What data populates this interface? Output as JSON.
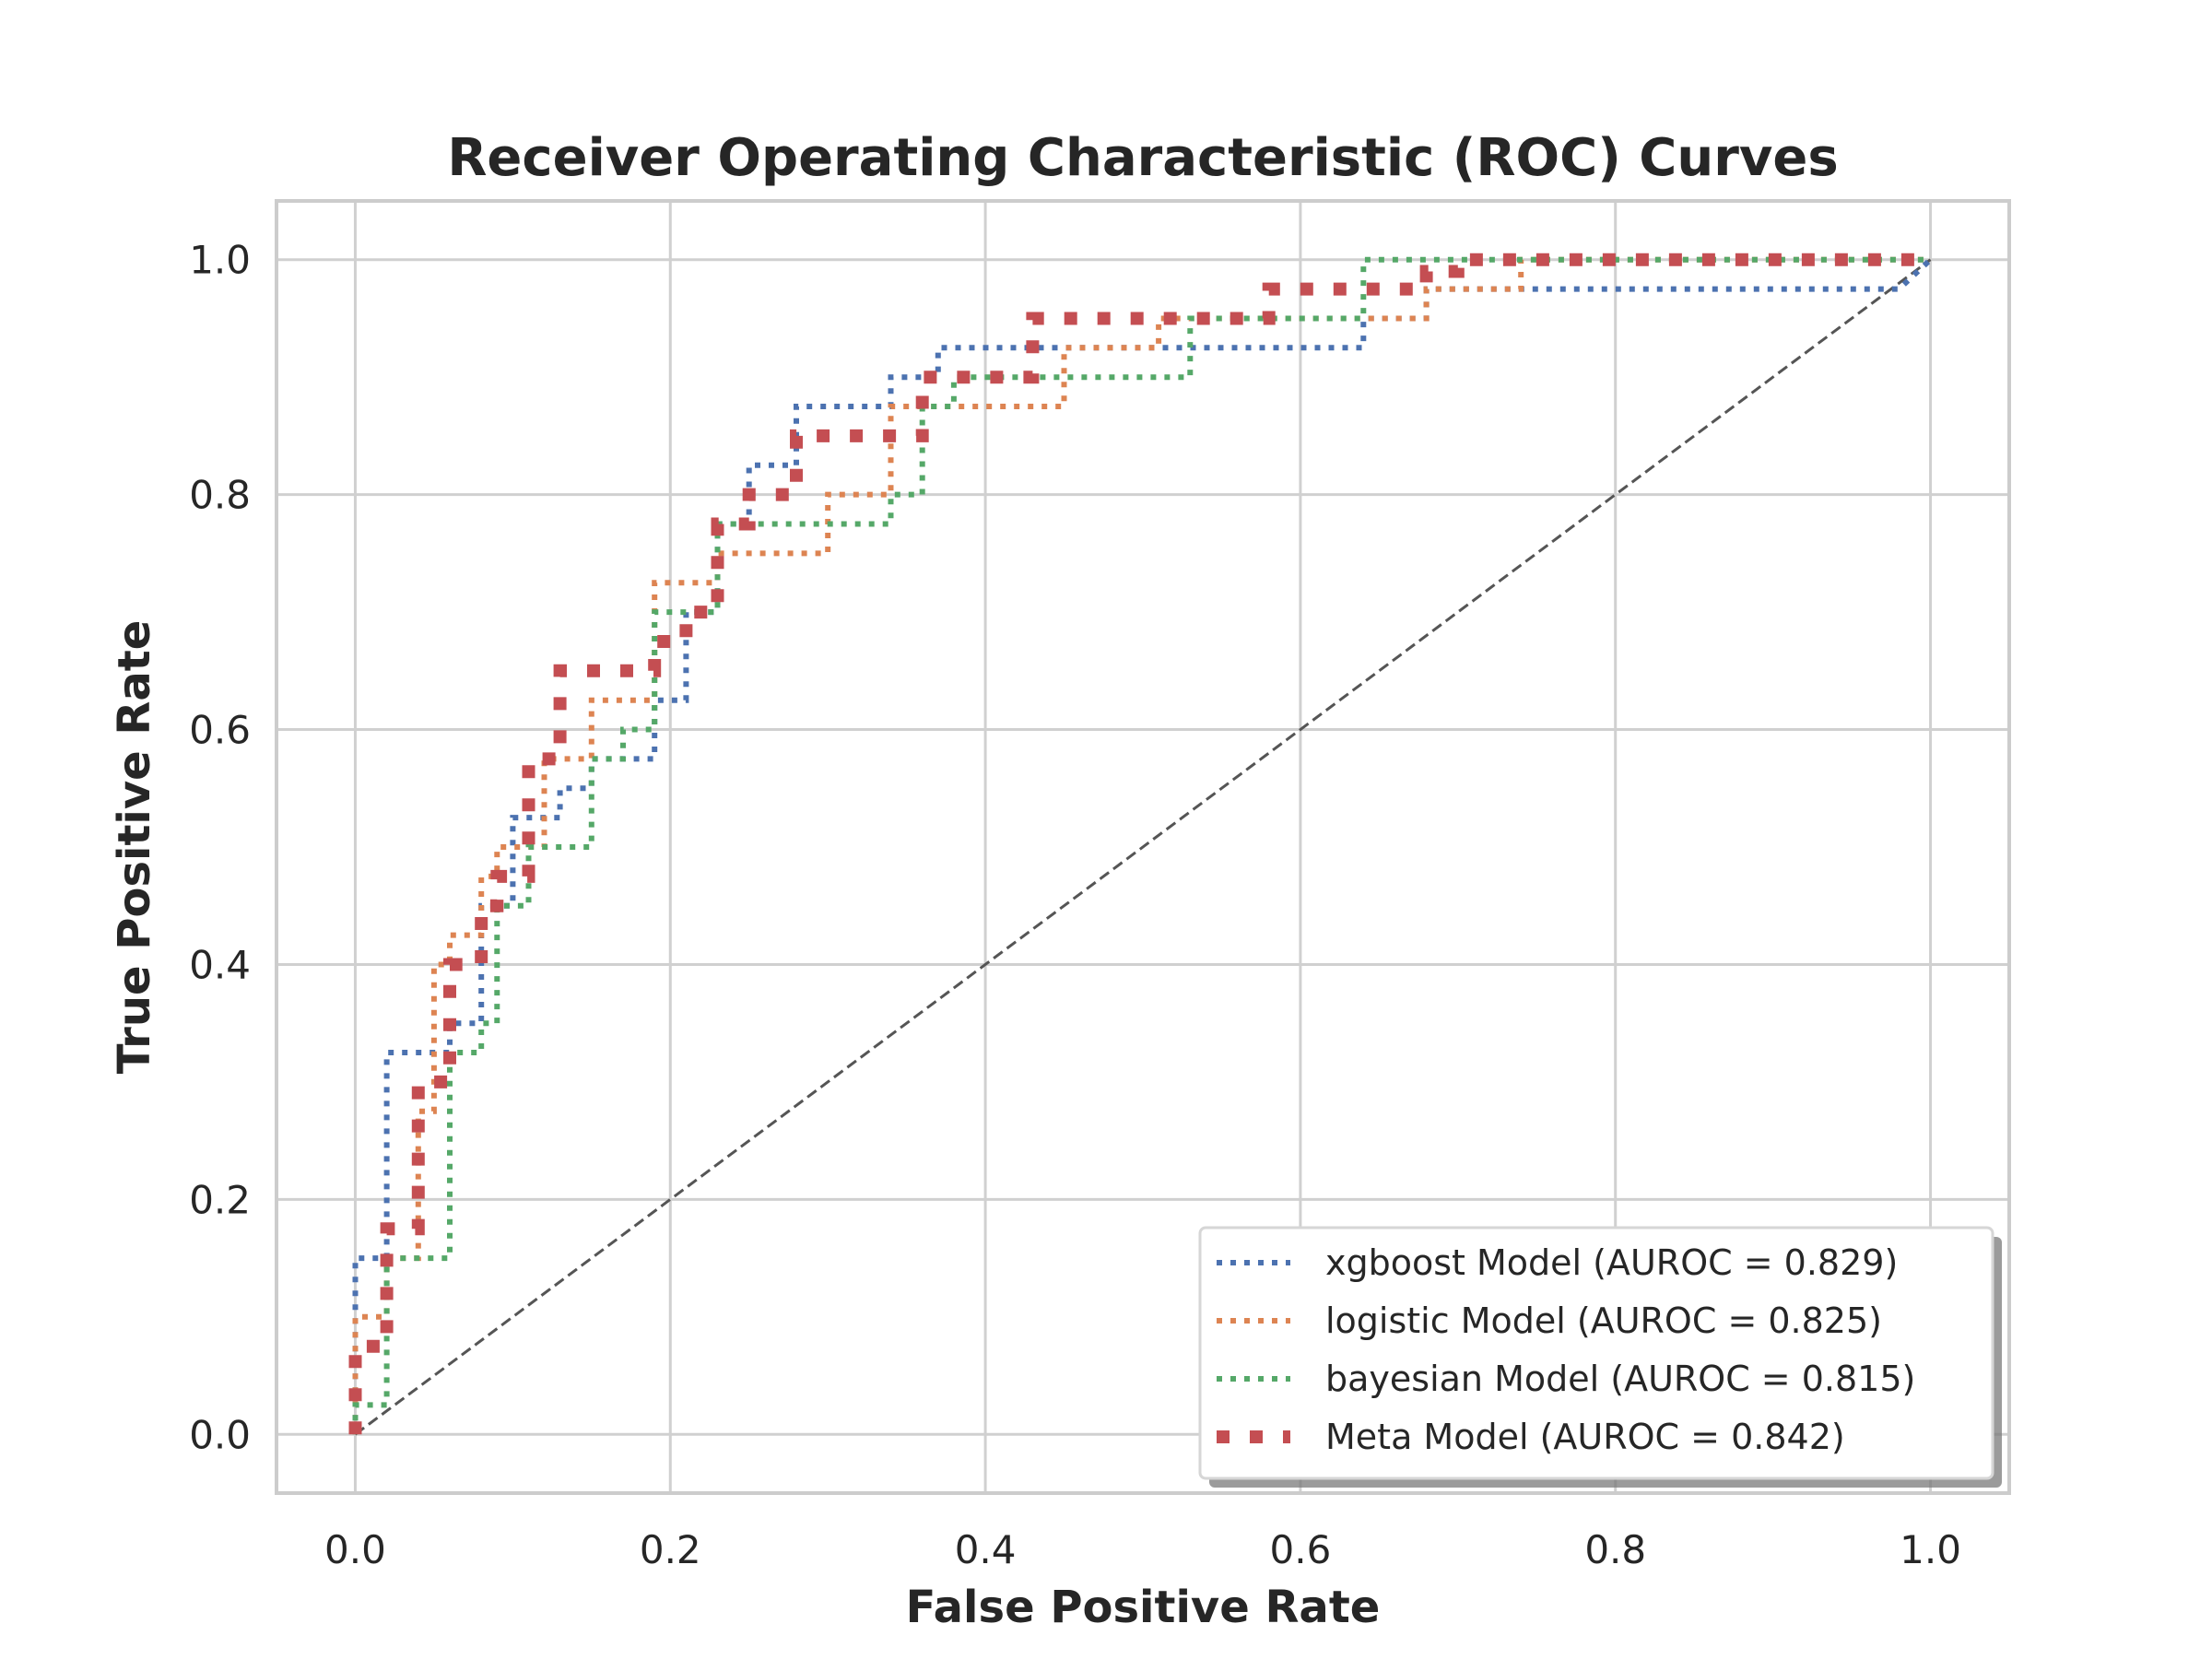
{
  "chart_data": {
    "type": "line",
    "title": "Receiver Operating Characteristic (ROC) Curves",
    "xlabel": "False Positive Rate",
    "ylabel": "True Positive Rate",
    "xlim": [
      -0.05,
      1.05
    ],
    "ylim": [
      -0.05,
      1.05
    ],
    "xticks": [
      "0.0",
      "0.2",
      "0.4",
      "0.6",
      "0.8",
      "1.0"
    ],
    "yticks": [
      "0.0",
      "0.2",
      "0.4",
      "0.6",
      "0.8",
      "1.0"
    ],
    "grid": true,
    "legend_position": "lower right",
    "reference_line": {
      "x": [
        0,
        1
      ],
      "y": [
        0,
        1
      ],
      "color": "#555555",
      "style": "dashed"
    },
    "series": [
      {
        "name": "xgboost Model (AUROC = 0.829)",
        "color": "#4c72b0",
        "style": "dotted",
        "x": [
          0.0,
          0.0,
          0.02,
          0.02,
          0.06,
          0.06,
          0.08,
          0.08,
          0.1,
          0.1,
          0.13,
          0.13,
          0.15,
          0.15,
          0.19,
          0.19,
          0.21,
          0.21,
          0.23,
          0.23,
          0.25,
          0.25,
          0.28,
          0.28,
          0.34,
          0.34,
          0.37,
          0.37,
          0.4,
          0.4,
          0.64,
          0.64,
          0.68,
          0.68,
          0.98,
          0.98,
          1.0
        ],
        "y": [
          0.0,
          0.15,
          0.15,
          0.325,
          0.325,
          0.35,
          0.35,
          0.45,
          0.45,
          0.525,
          0.525,
          0.55,
          0.55,
          0.575,
          0.575,
          0.625,
          0.625,
          0.7,
          0.7,
          0.775,
          0.775,
          0.825,
          0.825,
          0.875,
          0.875,
          0.9,
          0.9,
          0.925,
          0.925,
          0.925,
          0.925,
          0.95,
          0.95,
          0.975,
          0.975,
          0.975,
          1.0
        ]
      },
      {
        "name": "logistic Model (AUROC = 0.825)",
        "color": "#dd8452",
        "style": "dotted",
        "x": [
          0.0,
          0.0,
          0.02,
          0.02,
          0.04,
          0.04,
          0.05,
          0.05,
          0.06,
          0.06,
          0.08,
          0.08,
          0.09,
          0.09,
          0.12,
          0.12,
          0.15,
          0.15,
          0.19,
          0.19,
          0.23,
          0.23,
          0.25,
          0.25,
          0.3,
          0.3,
          0.34,
          0.34,
          0.45,
          0.45,
          0.51,
          0.51,
          0.64,
          0.64,
          0.68,
          0.68,
          0.74,
          0.74,
          1.0
        ],
        "y": [
          0.0,
          0.1,
          0.1,
          0.15,
          0.15,
          0.275,
          0.275,
          0.4,
          0.4,
          0.425,
          0.425,
          0.475,
          0.475,
          0.5,
          0.5,
          0.575,
          0.575,
          0.625,
          0.625,
          0.725,
          0.725,
          0.75,
          0.75,
          0.75,
          0.75,
          0.8,
          0.8,
          0.875,
          0.875,
          0.925,
          0.925,
          0.95,
          0.95,
          0.95,
          0.95,
          0.975,
          0.975,
          1.0,
          1.0
        ]
      },
      {
        "name": "bayesian Model (AUROC = 0.815)",
        "color": "#55a868",
        "style": "dotted",
        "x": [
          0.0,
          0.0,
          0.02,
          0.02,
          0.06,
          0.06,
          0.08,
          0.08,
          0.09,
          0.09,
          0.11,
          0.11,
          0.15,
          0.15,
          0.17,
          0.17,
          0.19,
          0.19,
          0.23,
          0.23,
          0.25,
          0.25,
          0.34,
          0.34,
          0.36,
          0.36,
          0.38,
          0.38,
          0.53,
          0.53,
          0.64,
          0.64,
          1.0
        ],
        "y": [
          0.0,
          0.025,
          0.025,
          0.15,
          0.15,
          0.325,
          0.325,
          0.35,
          0.35,
          0.45,
          0.45,
          0.5,
          0.5,
          0.575,
          0.575,
          0.6,
          0.6,
          0.7,
          0.7,
          0.775,
          0.775,
          0.775,
          0.775,
          0.8,
          0.8,
          0.875,
          0.875,
          0.9,
          0.9,
          0.95,
          0.95,
          1.0,
          1.0
        ]
      },
      {
        "name": "Meta Model (AUROC = 0.842)",
        "color": "#c44e52",
        "style": "dotted-bold",
        "x": [
          0.0,
          0.0,
          0.02,
          0.02,
          0.04,
          0.04,
          0.06,
          0.06,
          0.08,
          0.08,
          0.09,
          0.09,
          0.11,
          0.11,
          0.13,
          0.13,
          0.15,
          0.15,
          0.19,
          0.19,
          0.21,
          0.21,
          0.23,
          0.23,
          0.25,
          0.25,
          0.28,
          0.28,
          0.36,
          0.36,
          0.38,
          0.38,
          0.43,
          0.43,
          0.58,
          0.58,
          0.68,
          0.68,
          0.7,
          0.7,
          1.0
        ],
        "y": [
          0.0,
          0.075,
          0.075,
          0.175,
          0.175,
          0.3,
          0.3,
          0.4,
          0.4,
          0.45,
          0.45,
          0.475,
          0.475,
          0.575,
          0.575,
          0.65,
          0.65,
          0.65,
          0.65,
          0.675,
          0.675,
          0.7,
          0.7,
          0.775,
          0.775,
          0.8,
          0.8,
          0.85,
          0.85,
          0.9,
          0.9,
          0.9,
          0.9,
          0.95,
          0.95,
          0.975,
          0.975,
          0.99,
          0.99,
          1.0,
          1.0
        ]
      }
    ]
  }
}
